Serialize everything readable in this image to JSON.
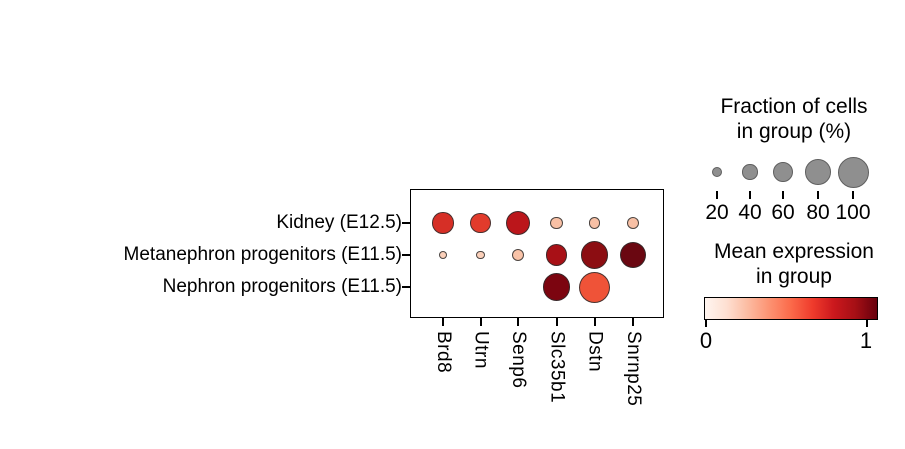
{
  "size_legend": {
    "title_line1": "Fraction of cells",
    "title_line2": "in group (%)",
    "values": [
      20,
      40,
      60,
      80,
      100
    ],
    "labels": [
      "20",
      "40",
      "60",
      "80",
      "100"
    ],
    "dot_fill": "#8f8f8f",
    "dot_edge": "#5f5f5f"
  },
  "color_legend": {
    "title_line1": "Mean expression",
    "title_line2": "in group",
    "tick_min_label": "0",
    "tick_max_label": "1",
    "cmap_reds": [
      "#fff5f0",
      "#fee0d2",
      "#fcbba1",
      "#fc9272",
      "#fb6a4a",
      "#ef3b2c",
      "#cb181d",
      "#a50f15",
      "#67000d"
    ]
  },
  "chart_data": {
    "type": "dotplot",
    "title": "",
    "groups": [
      "Kidney (E12.5)",
      "Metanephron progenitors (E11.5)",
      "Nephron progenitors (E11.5)"
    ],
    "genes": [
      "Brd8",
      "Utrn",
      "Senp6",
      "Slc35b1",
      "Dstn",
      "Snrnp25"
    ],
    "size_encoding": "fraction of cells in group (%)",
    "color_encoding": "mean expression in group (0-1, Reds colormap)",
    "fraction_pct": [
      [
        63,
        60,
        75,
        28,
        25,
        28
      ],
      [
        15,
        15,
        30,
        63,
        85,
        82
      ],
      [
        0,
        0,
        0,
        85,
        100,
        0
      ]
    ],
    "mean_expression": [
      [
        0.72,
        0.68,
        0.8,
        0.18,
        0.18,
        0.18
      ],
      [
        0.1,
        0.1,
        0.16,
        0.87,
        0.93,
        1.0
      ],
      [
        null,
        null,
        null,
        0.95,
        0.6,
        null
      ]
    ],
    "dot_colors": [
      [
        "#d62f26",
        "#e23b2c",
        "#bb161b",
        "#f8c0a5",
        "#f8c0a5",
        "#f8c0a5"
      ],
      [
        "#fbd0ba",
        "#fbd0ba",
        "#f9c3a8",
        "#a81016",
        "#8c0d12",
        "#6a0711"
      ],
      [
        null,
        null,
        null,
        "#7c0510",
        "#ef5338",
        null
      ]
    ]
  }
}
